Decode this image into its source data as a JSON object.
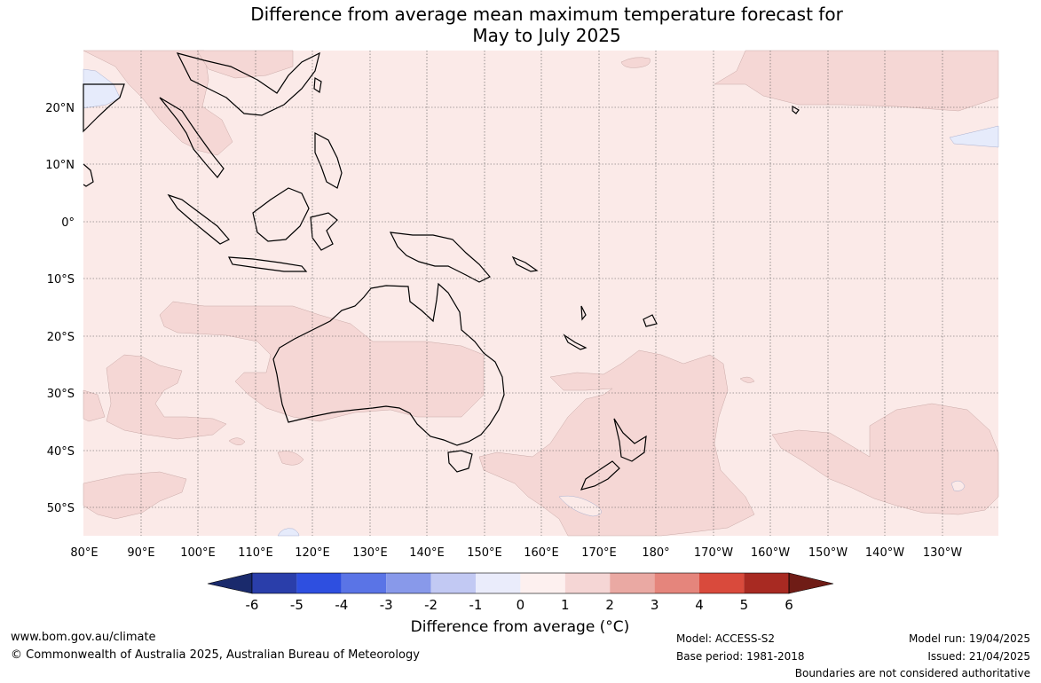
{
  "title_line1": "Difference from average mean maximum temperature forecast for",
  "title_line2": "May to July 2025",
  "map": {
    "lon_labels": [
      "80°E",
      "90°E",
      "100°E",
      "110°E",
      "120°E",
      "130°E",
      "140°E",
      "150°E",
      "160°E",
      "170°E",
      "180°",
      "170°W",
      "160°W",
      "150°W",
      "140°W",
      "130°W"
    ],
    "lat_labels": [
      "20°N",
      "10°N",
      "0°",
      "10°S",
      "20°S",
      "30°S",
      "40°S",
      "50°S"
    ],
    "colors": {
      "background": "#fbeae8",
      "warm": "#f5d7d5",
      "cool": "#e6ebfb",
      "coast": "#000000",
      "border": "#8a8a8a"
    }
  },
  "colorbar": {
    "ticks": [
      "-6",
      "-5",
      "-4",
      "-3",
      "-2",
      "-1",
      "0",
      "1",
      "2",
      "3",
      "4",
      "5",
      "6"
    ],
    "colors": [
      "#1a2a6c",
      "#2a3eaa",
      "#2e4fe0",
      "#5a74e6",
      "#8899ea",
      "#c2c9f3",
      "#eaecfb",
      "#fdf0ef",
      "#f5d6d5",
      "#eaa9a3",
      "#e5857c",
      "#d94a3c",
      "#a82a22",
      "#6f1c16"
    ],
    "label": "Difference from average (°C)"
  },
  "footer": {
    "website": "www.bom.gov.au/climate",
    "copyright": "© Commonwealth of Australia 2025, Australian Bureau of Meteorology",
    "model": "Model: ACCESS-S2",
    "base_period": "Base period: 1981-2018",
    "model_run": "Model run: 19/04/2025",
    "issued": "Issued: 21/04/2025",
    "disclaimer": "Boundaries are not considered authoritative"
  }
}
